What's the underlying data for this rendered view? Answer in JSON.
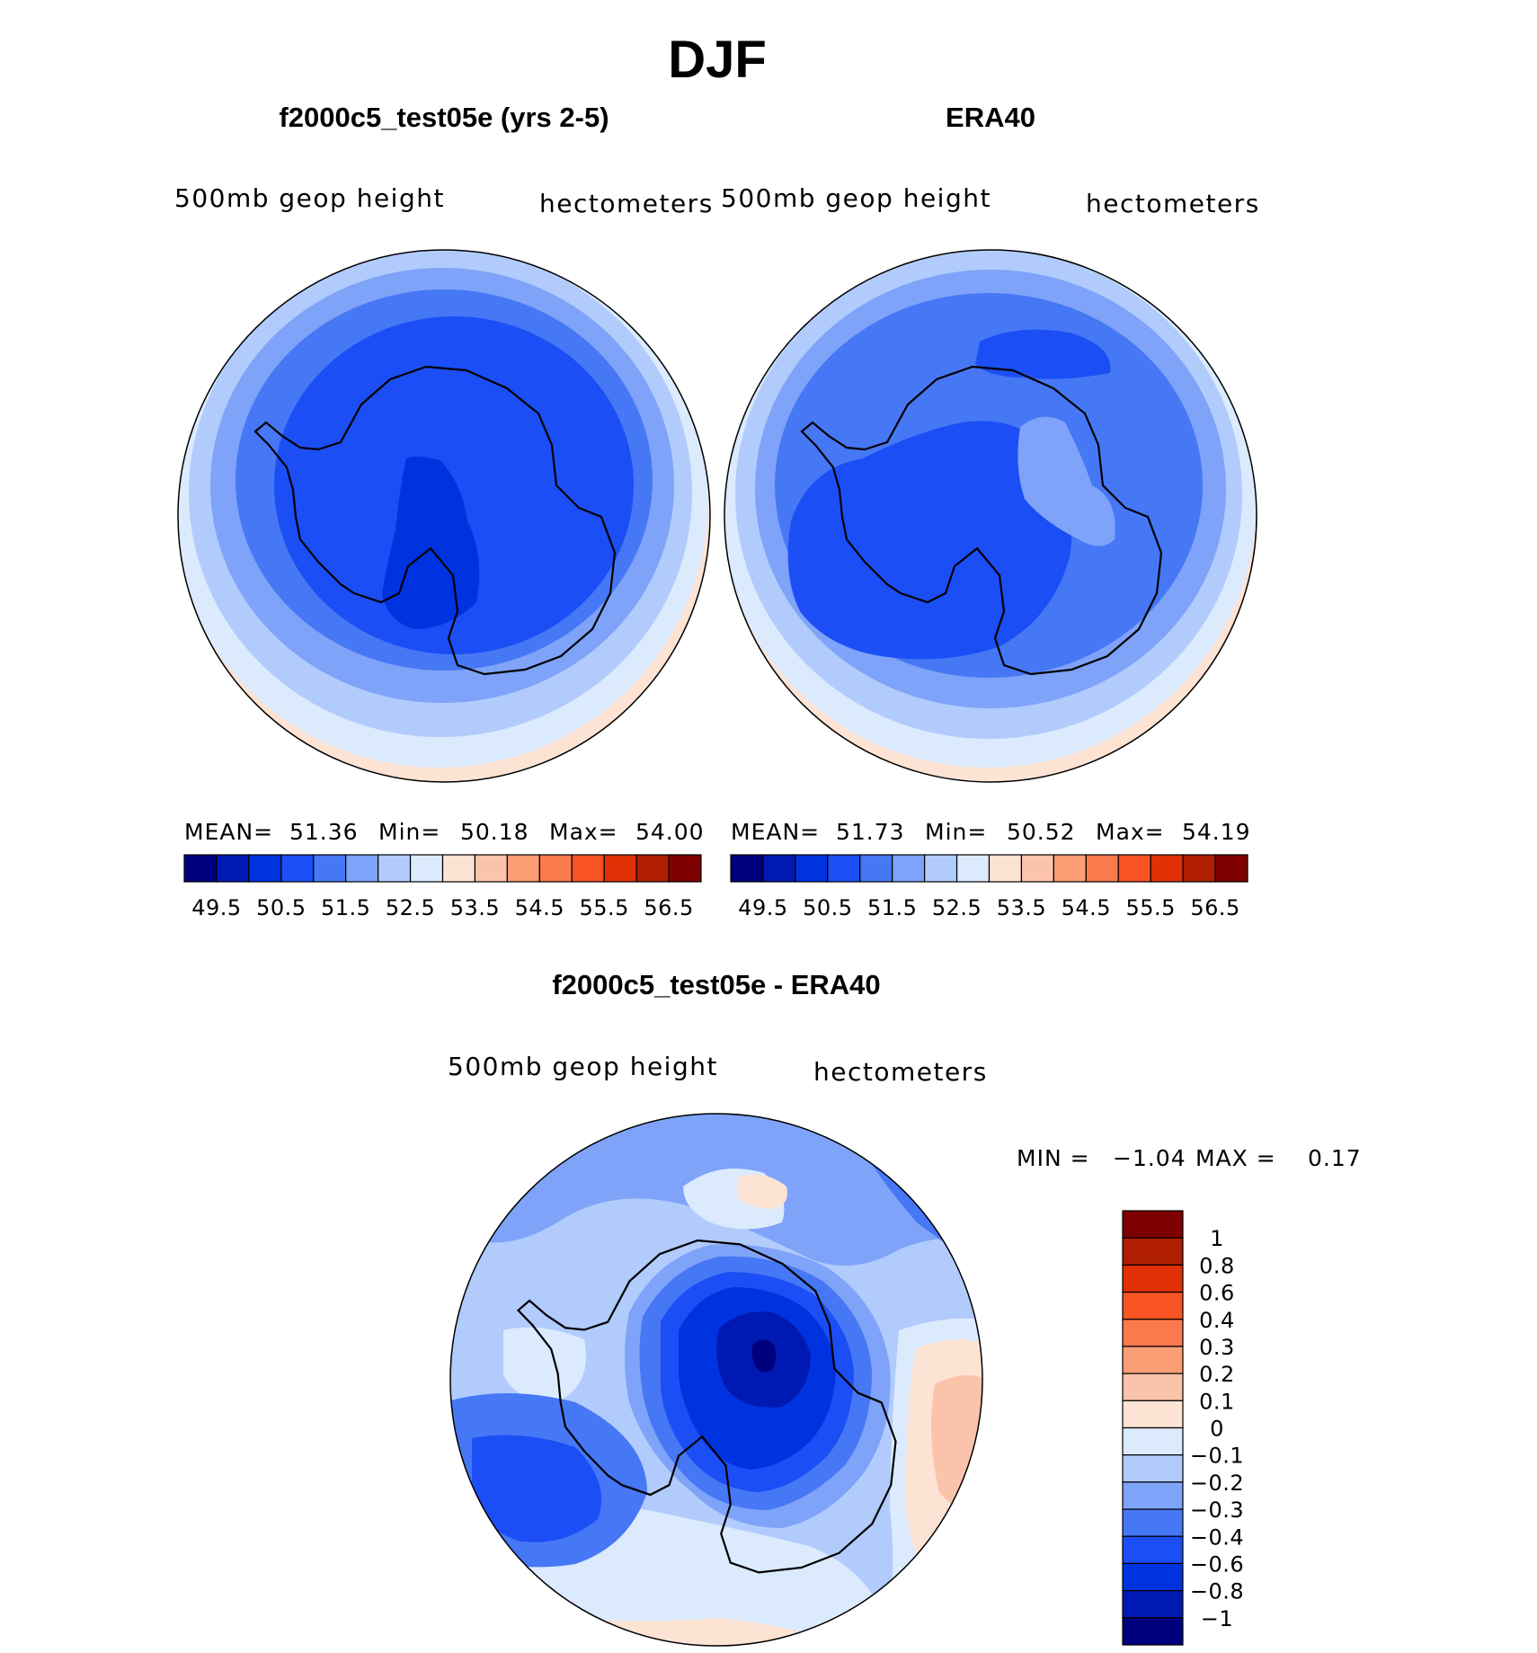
{
  "figure": {
    "title": "DJF"
  },
  "chart_data": [
    {
      "type": "contour-map",
      "projection": "south-polar-stereographic",
      "title": "f2000c5_test05e (yrs 2-5)",
      "variable_label": "500mb geop height",
      "units_label": "hectometers",
      "stats": {
        "mean_label": "MEAN=",
        "mean": "51.36",
        "min_label": "Min=",
        "min": "50.18",
        "max_label": "Max=",
        "max": "54.00"
      },
      "colorbar": {
        "orientation": "horizontal",
        "levels": [
          "49.5",
          "50.5",
          "51.5",
          "52.5",
          "53.5",
          "54.5",
          "55.5",
          "56.5"
        ],
        "colors": [
          "#00007f",
          "#0019b2",
          "#0033e0",
          "#1c4ef5",
          "#4677f5",
          "#7ea3f8",
          "#b1cbfc",
          "#dbeafd",
          "#fde3d4",
          "#fcc3ab",
          "#fb9e76",
          "#fa7a4e",
          "#f85424",
          "#e13006",
          "#b01e02",
          "#7f0000"
        ]
      },
      "field_levels_from_edge": [
        "#fde3d4",
        "#dbeafd",
        "#b1cbfc",
        "#7ea3f8",
        "#4677f5",
        "#1c4ef5",
        "#0033e0"
      ]
    },
    {
      "type": "contour-map",
      "projection": "south-polar-stereographic",
      "title": "ERA40",
      "variable_label": "500mb geop height",
      "units_label": "hectometers",
      "stats": {
        "mean_label": "MEAN=",
        "mean": "51.73",
        "min_label": "Min=",
        "min": "50.52",
        "max_label": "Max=",
        "max": "54.19"
      },
      "colorbar": {
        "orientation": "horizontal",
        "levels": [
          "49.5",
          "50.5",
          "51.5",
          "52.5",
          "53.5",
          "54.5",
          "55.5",
          "56.5"
        ],
        "colors": [
          "#00007f",
          "#0019b2",
          "#0033e0",
          "#1c4ef5",
          "#4677f5",
          "#7ea3f8",
          "#b1cbfc",
          "#dbeafd",
          "#fde3d4",
          "#fcc3ab",
          "#fb9e76",
          "#fa7a4e",
          "#f85424",
          "#e13006",
          "#b01e02",
          "#7f0000"
        ]
      },
      "field_levels_from_edge": [
        "#fde3d4",
        "#dbeafd",
        "#b1cbfc",
        "#7ea3f8",
        "#4677f5",
        "#1c4ef5",
        "#7ea3f8"
      ]
    },
    {
      "type": "contour-map",
      "projection": "south-polar-stereographic",
      "title": "f2000c5_test05e - ERA40",
      "variable_label": "500mb geop height",
      "units_label": "hectometers",
      "stats": {
        "min_label": "MIN =",
        "min": "−1.04",
        "max_label": "MAX =",
        "max": "0.17"
      },
      "colorbar": {
        "orientation": "vertical",
        "levels": [
          "1",
          "0.8",
          "0.6",
          "0.4",
          "0.3",
          "0.2",
          "0.1",
          "0",
          "−0.1",
          "−0.2",
          "−0.3",
          "−0.4",
          "−0.6",
          "−0.8",
          "−1"
        ],
        "colors_top_to_bottom": [
          "#7f0000",
          "#b01e02",
          "#e13006",
          "#f85424",
          "#fa7a4e",
          "#fb9e76",
          "#fcc3ab",
          "#fde3d4",
          "#dbeafd",
          "#b1cbfc",
          "#7ea3f8",
          "#4677f5",
          "#1c4ef5",
          "#0033e0",
          "#0019b2",
          "#00007f"
        ]
      }
    }
  ]
}
